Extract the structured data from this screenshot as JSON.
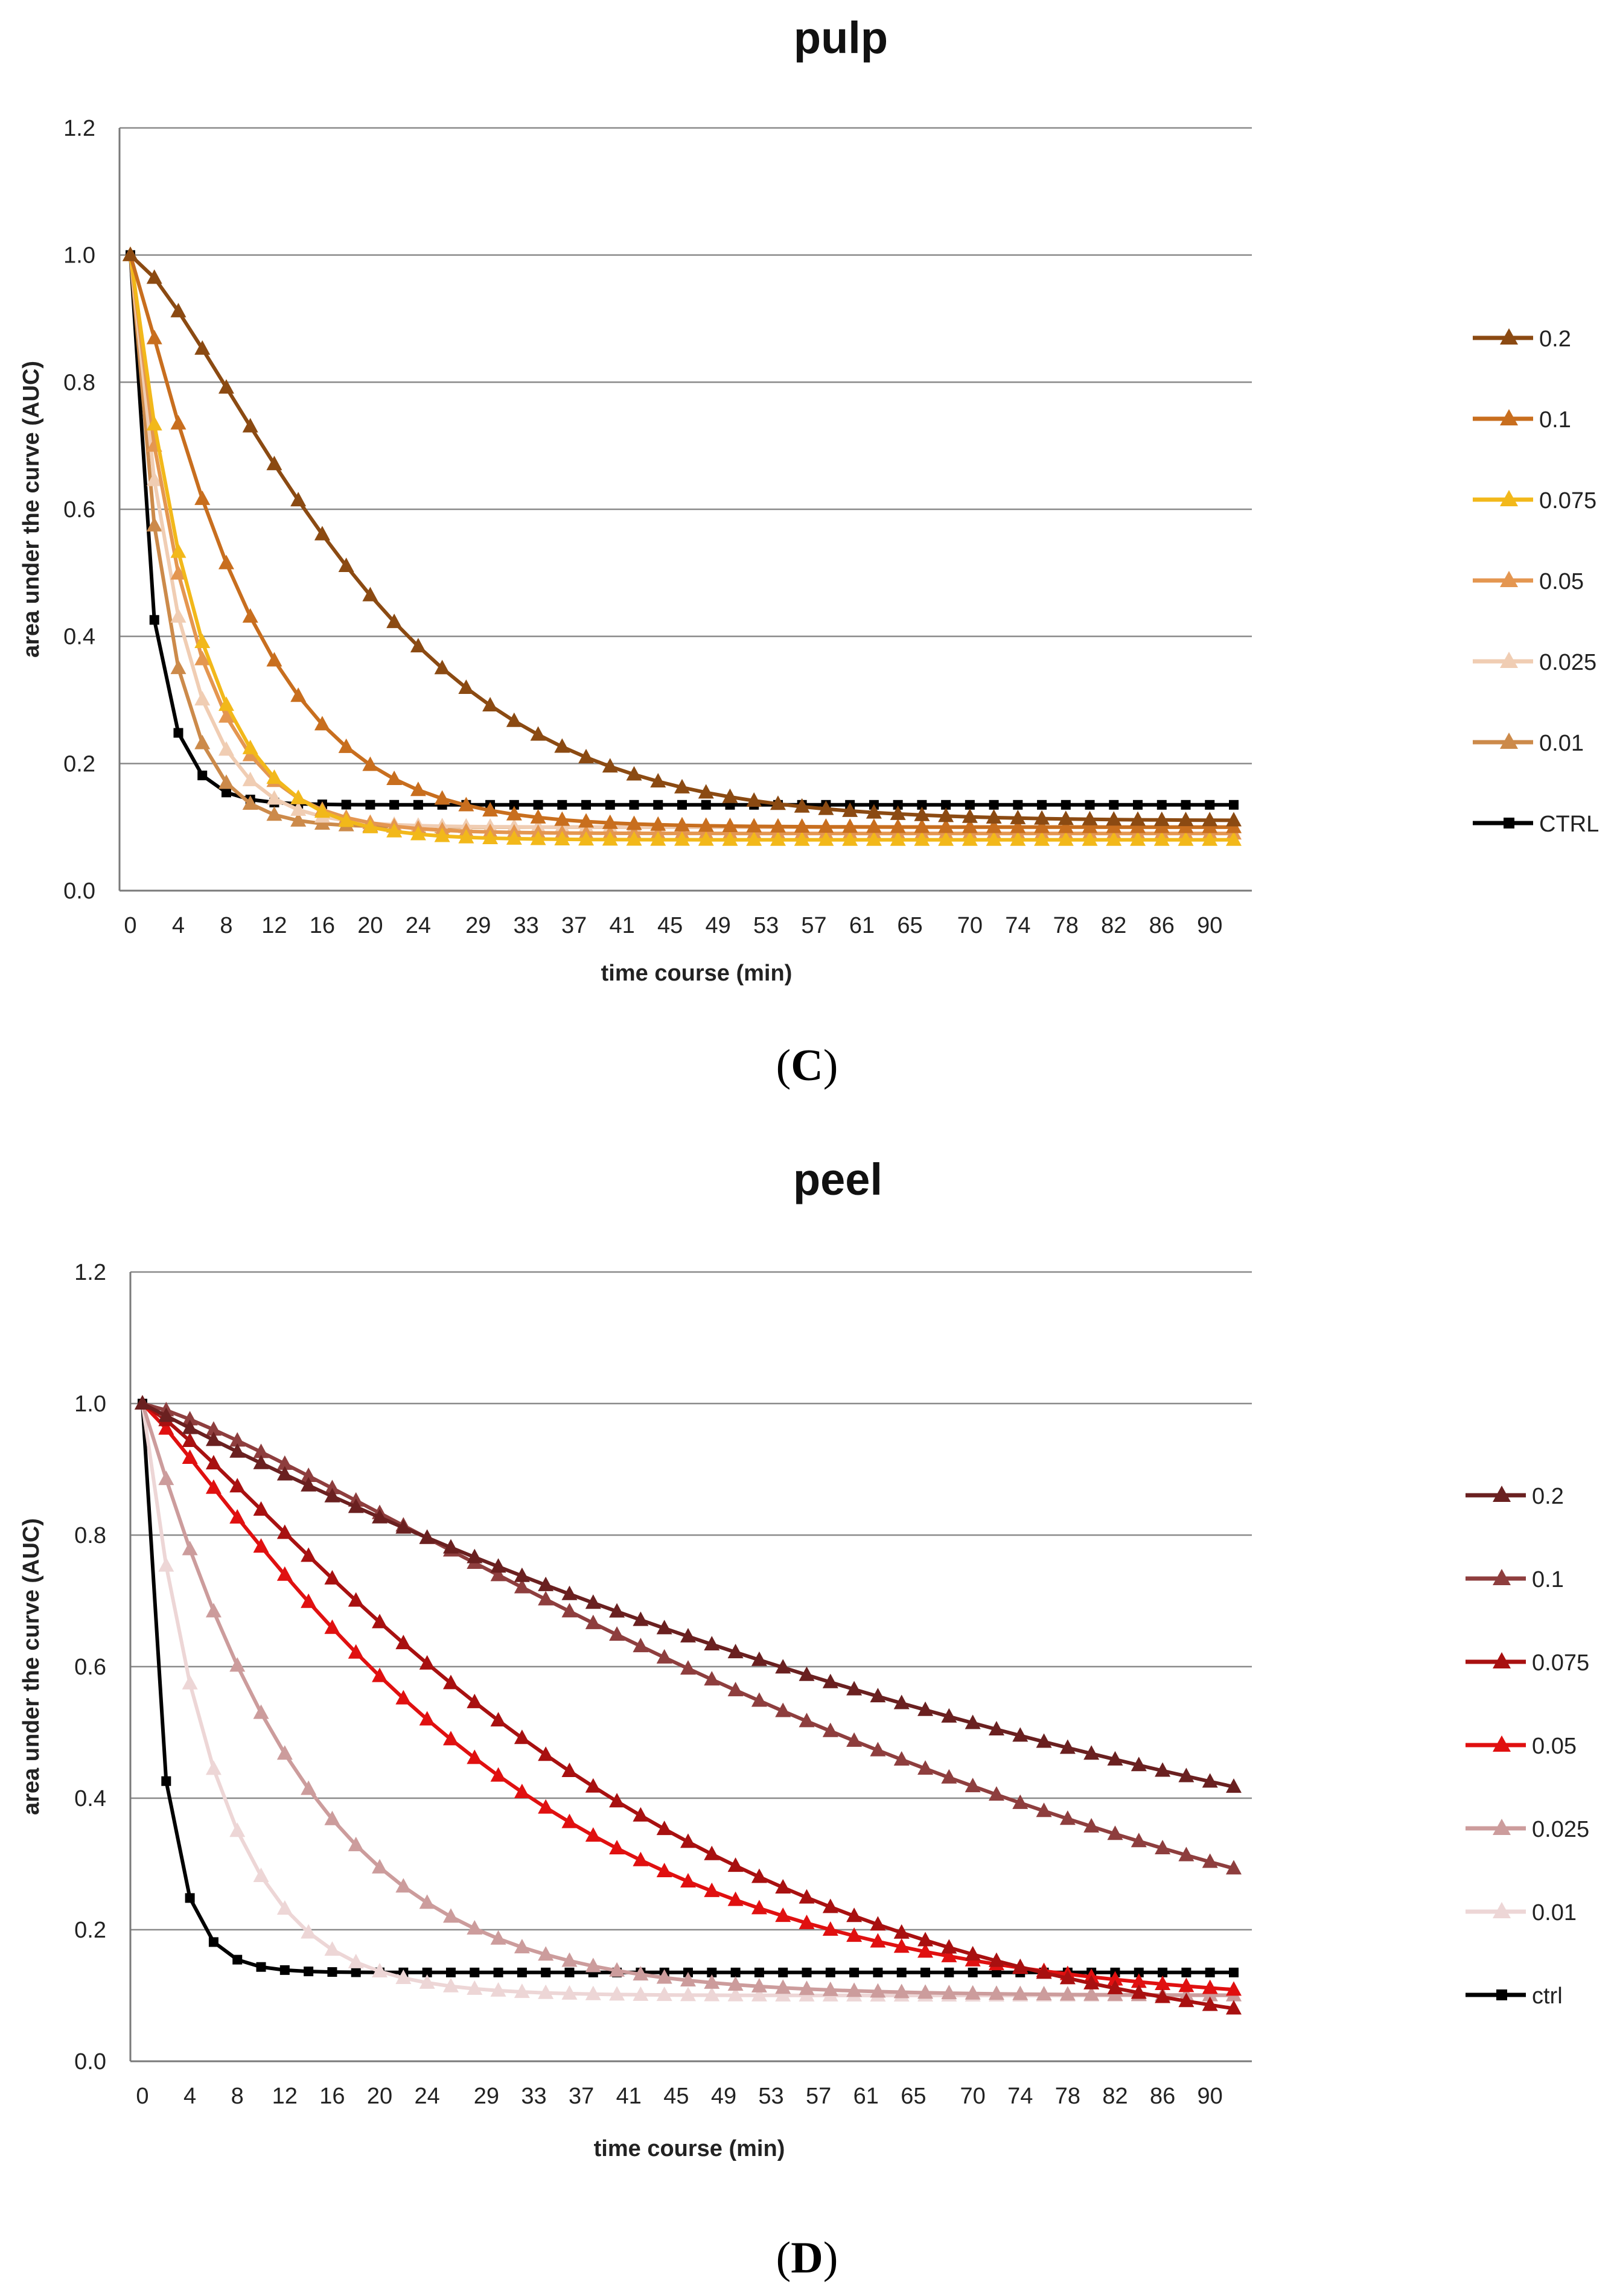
{
  "chart_data": [
    {
      "panel_label": "C",
      "type": "line",
      "title": "pulp",
      "xlabel": "time course (min)",
      "ylabel": "area under the curve (AUC)",
      "ylim": [
        0,
        1.2
      ],
      "xlim": [
        0,
        92
      ],
      "yticks": [
        "0.0",
        "0.2",
        "0.4",
        "0.6",
        "0.8",
        "1.0",
        "1.2"
      ],
      "xticks": [
        "0",
        "4",
        "8",
        "12",
        "16",
        "20",
        "24",
        "29",
        "33",
        "37",
        "41",
        "45",
        "49",
        "53",
        "57",
        "61",
        "65",
        "70",
        "74",
        "78",
        "82",
        "86",
        "90"
      ],
      "grid": true,
      "legend_position": "right",
      "series": [
        {
          "name": "0.2",
          "color": "#8B4A12",
          "marker": "triangle",
          "k": 0.047,
          "p": 1.35,
          "a": 0.11
        },
        {
          "name": "0.1",
          "color": "#C86E1E",
          "marker": "triangle",
          "k": 0.1,
          "p": 1.15,
          "a": 0.1
        },
        {
          "name": "0.075",
          "color": "#F2B81A",
          "marker": "triangle",
          "k": 0.18,
          "p": 1.05,
          "a": 0.08
        },
        {
          "name": "0.05",
          "color": "#E49650",
          "marker": "triangle",
          "k": 0.2,
          "p": 1.0,
          "a": 0.09
        },
        {
          "name": "0.025",
          "color": "#F0CDB3",
          "marker": "triangle",
          "k": 0.25,
          "p": 1.0,
          "a": 0.1
        },
        {
          "name": "0.01",
          "color": "#CC8A4A",
          "marker": "triangle",
          "k": 0.32,
          "p": 1.0,
          "a": 0.1
        },
        {
          "name": "CTRL",
          "color": "#000000",
          "marker": "square",
          "k": 0.55,
          "p": 0.9,
          "a": 0.135
        }
      ]
    },
    {
      "panel_label": "D",
      "type": "line",
      "title": "peel",
      "xlabel": "time course (min)",
      "ylabel": "area under the curve (AUC)",
      "ylim": [
        0,
        1.2
      ],
      "xlim": [
        0,
        92
      ],
      "yticks": [
        "0.0",
        "0.2",
        "0.4",
        "0.6",
        "0.8",
        "1.0",
        "1.2"
      ],
      "xticks": [
        "0",
        "4",
        "8",
        "12",
        "16",
        "20",
        "24",
        "29",
        "33",
        "37",
        "41",
        "45",
        "49",
        "53",
        "57",
        "61",
        "65",
        "70",
        "74",
        "78",
        "82",
        "86",
        "90"
      ],
      "grid": true,
      "legend_position": "right",
      "series": [
        {
          "name": "0.2",
          "color": "#6A2020",
          "marker": "triangle",
          "k": 0.0095,
          "p": 1.0,
          "a": 0.0
        },
        {
          "name": "0.1",
          "color": "#8E3E3E",
          "marker": "triangle",
          "k": 0.0128,
          "p": 1.25,
          "a": 0.0
        },
        {
          "name": "0.075",
          "color": "#A81010",
          "marker": "triangle",
          "k": 0.0235,
          "p": 1.2,
          "a": 0.0
        },
        {
          "name": "0.05",
          "color": "#E01010",
          "marker": "triangle",
          "k": 0.032,
          "p": 1.15,
          "a": 0.08
        },
        {
          "name": "0.025",
          "color": "#CC9C9C",
          "marker": "triangle",
          "k": 0.075,
          "p": 1.05,
          "a": 0.1
        },
        {
          "name": "0.01",
          "color": "#EDD6D6",
          "marker": "triangle",
          "k": 0.16,
          "p": 1.0,
          "a": 0.1
        },
        {
          "name": "ctrl",
          "color": "#000000",
          "marker": "square",
          "k": 0.55,
          "p": 0.9,
          "a": 0.135
        }
      ]
    }
  ]
}
